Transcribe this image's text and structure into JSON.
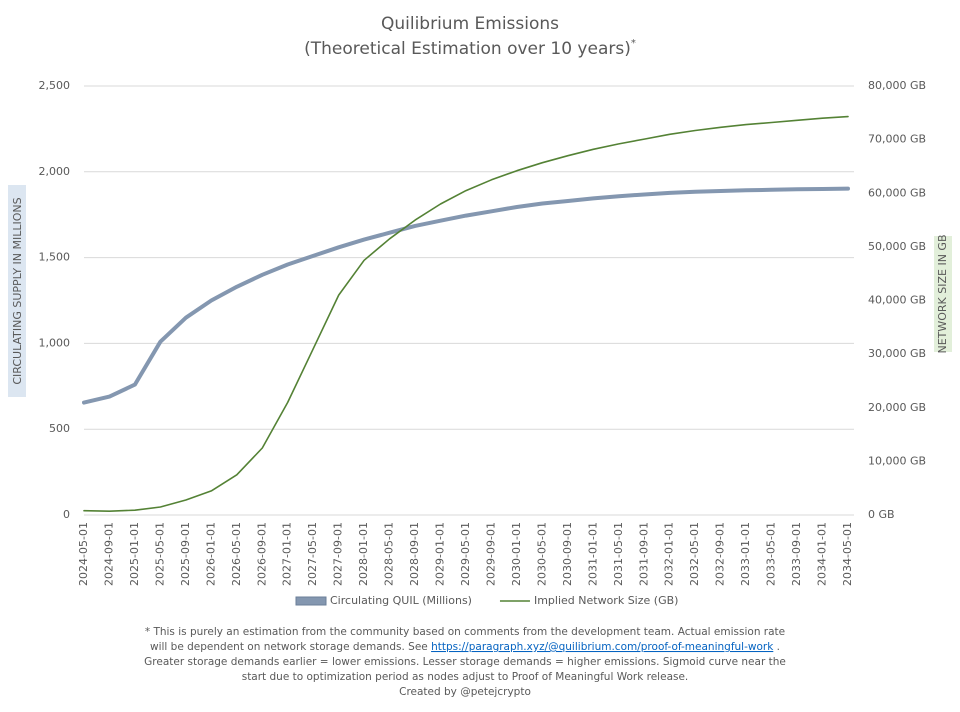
{
  "chart_data": {
    "type": "line",
    "title": "Quilibrium Emissions",
    "subtitle": "(Theoretical Estimation over 10 years)",
    "subtitle_mark": "*",
    "y_label": "CIRCULATING SUPPLY IN MILLIONS",
    "y2_label": "NETWORK SIZE IN GB",
    "categories": [
      "2024-05-01",
      "2024-09-01",
      "2025-01-01",
      "2025-05-01",
      "2025-09-01",
      "2026-01-01",
      "2026-05-01",
      "2026-09-01",
      "2027-01-01",
      "2027-05-01",
      "2027-09-01",
      "2028-01-01",
      "2028-05-01",
      "2028-09-01",
      "2029-01-01",
      "2029-05-01",
      "2029-09-01",
      "2030-01-01",
      "2030-05-01",
      "2030-09-01",
      "2031-01-01",
      "2031-05-01",
      "2031-09-01",
      "2032-01-01",
      "2032-05-01",
      "2032-09-01",
      "2033-01-01",
      "2033-05-01",
      "2033-09-01",
      "2034-01-01",
      "2034-05-01"
    ],
    "series": [
      {
        "name": "Circulating QUIL (Millions)",
        "color": "#8497b0",
        "values": [
          655,
          690,
          760,
          1010,
          1150,
          1250,
          1330,
          1400,
          1460,
          1510,
          1560,
          1605,
          1645,
          1685,
          1715,
          1745,
          1770,
          1795,
          1815,
          1830,
          1845,
          1858,
          1868,
          1877,
          1884,
          1888,
          1892,
          1895,
          1898,
          1900,
          1902
        ]
      },
      {
        "name": "Implied Network Size (GB)",
        "color": "#548235",
        "axis": "y2",
        "values": [
          800,
          700,
          900,
          1500,
          2800,
          4500,
          7500,
          12500,
          21000,
          31000,
          41000,
          47500,
          51500,
          55000,
          58000,
          60500,
          62500,
          64200,
          65700,
          67000,
          68200,
          69200,
          70100,
          71000,
          71700,
          72300,
          72800,
          73200,
          73600,
          74000,
          74300
        ]
      }
    ],
    "ylim": [
      0,
      2500
    ],
    "yticks": [
      0,
      500,
      {
        "value": 1000,
        "label": "1,000"
      },
      {
        "value": 1500,
        "label": "1,500"
      },
      {
        "value": 2000,
        "label": "2,000"
      },
      {
        "value": 2500,
        "label": "2,500"
      }
    ],
    "y2lim": [
      0,
      80000
    ],
    "y2ticks": [
      {
        "value": 0,
        "label": "0 GB"
      },
      {
        "value": 10000,
        "label": "10,000 GB"
      },
      {
        "value": 20000,
        "label": "20,000 GB"
      },
      {
        "value": 30000,
        "label": "30,000 GB"
      },
      {
        "value": 40000,
        "label": "40,000 GB"
      },
      {
        "value": 50000,
        "label": "50,000 GB"
      },
      {
        "value": 60000,
        "label": "60,000 GB"
      },
      {
        "value": 70000,
        "label": "70,000 GB"
      },
      {
        "value": 80000,
        "label": "80,000 GB"
      }
    ],
    "grid": true,
    "legend": "bottom",
    "footnote": {
      "line1": "* This is purely an estimation from the community based on comments from the development team. Actual emission rate",
      "line2a": "will be dependent on network storage demands. See ",
      "link": "https://paragraph.xyz/@quilibrium.com/proof-of-meaningful-work",
      "line2b": " .",
      "line3": "Greater storage demands earlier = lower emissions. Lesser storage demands = higher emissions. Sigmoid curve near the",
      "line4": "start due to optimization period as nodes adjust to Proof of Meaningful Work release.",
      "credit": "Created by @petejcrypto"
    }
  }
}
